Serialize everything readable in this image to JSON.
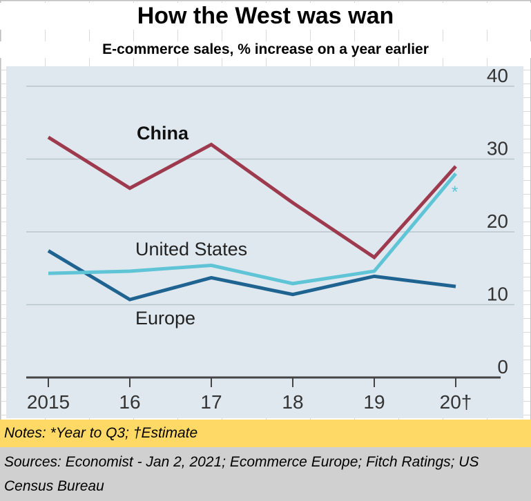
{
  "title": "How the West was wan",
  "subtitle": "E-commerce sales, % increase on a year earlier",
  "notes": "Notes: *Year to Q3; †Estimate",
  "sources": "Sources: Economist - Jan 2, 2021; Ecommerce Europe; Fitch Ratings; US Census Bureau",
  "chart_data": {
    "type": "line",
    "categories": [
      "2015",
      "16",
      "17",
      "18",
      "19",
      "20†"
    ],
    "ylim": [
      0,
      40
    ],
    "yticks": [
      "0",
      "10",
      "20",
      "30",
      "40"
    ],
    "grid": true,
    "series": [
      {
        "name": "China",
        "color": "#9e3a4e",
        "values": [
          33,
          26,
          32,
          24,
          16.5,
          29
        ]
      },
      {
        "name": "United States",
        "color": "#5ec4d6",
        "values": [
          14.3,
          14.6,
          15.4,
          12.9,
          14.6,
          28
        ]
      },
      {
        "name": "Europe",
        "color": "#1f6391",
        "values": [
          17.4,
          10.7,
          13.7,
          11.4,
          13.9,
          12.5
        ]
      }
    ],
    "annotations": [
      {
        "text": "*",
        "attached_to": "United States",
        "color": "#5ec4d6"
      }
    ]
  }
}
